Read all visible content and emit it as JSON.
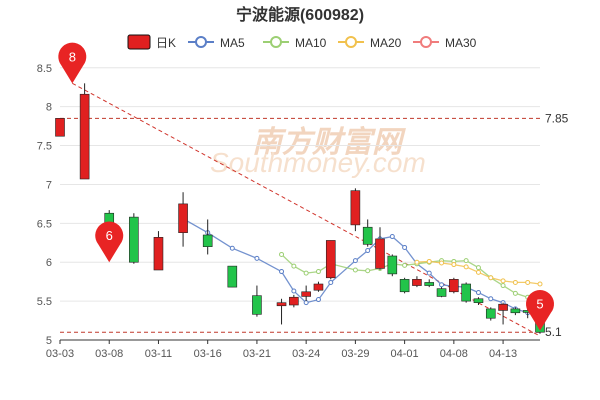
{
  "chart_data": {
    "type": "candlestick",
    "title": "宁波能源(600982)",
    "legend": [
      {
        "name": "日K",
        "color": "#e02020",
        "style": "box"
      },
      {
        "name": "MA5",
        "color": "#5b7fc7",
        "style": "circle"
      },
      {
        "name": "MA10",
        "color": "#9ccf73",
        "style": "circle"
      },
      {
        "name": "MA20",
        "color": "#f1c14d",
        "style": "circle"
      },
      {
        "name": "MA30",
        "color": "#f07c7c",
        "style": "circle"
      }
    ],
    "legend_position": "top-center",
    "ylim": [
      5,
      8.6
    ],
    "y_ticks": [
      5,
      5.5,
      6,
      6.5,
      7,
      7.5,
      8,
      8.5
    ],
    "x_ticks": [
      "03-03",
      "03-08",
      "03-11",
      "03-16",
      "03-21",
      "03-24",
      "03-29",
      "04-01",
      "04-08",
      "04-13"
    ],
    "x_tick_index": [
      0,
      4,
      8,
      12,
      16,
      20,
      24,
      28,
      32,
      36
    ],
    "num_days": 40,
    "grid": true,
    "up_color": "#e02020",
    "down_color": "#22c44a",
    "candles": [
      {
        "o": 7.62,
        "c": 7.85,
        "h": 7.85,
        "l": 7.62
      },
      {
        "o": 7.07,
        "c": 8.16,
        "h": 8.3,
        "l": 7.07
      },
      {
        "o": 6.63,
        "c": 6.5,
        "h": 6.67,
        "l": 6.4
      },
      {
        "o": 6.58,
        "c": 6.0,
        "h": 6.63,
        "l": 5.98
      },
      {
        "o": 5.9,
        "c": 6.32,
        "h": 6.4,
        "l": 5.9
      },
      {
        "o": 6.38,
        "c": 6.75,
        "h": 6.9,
        "l": 6.2
      },
      {
        "o": 6.35,
        "c": 6.2,
        "h": 6.55,
        "l": 6.1
      },
      {
        "o": 5.95,
        "c": 5.68,
        "h": 5.95,
        "l": 5.68
      },
      {
        "o": 5.57,
        "c": 5.33,
        "h": 5.7,
        "l": 5.3
      },
      {
        "o": 5.44,
        "c": 5.48,
        "h": 5.53,
        "l": 5.2
      },
      {
        "o": 5.45,
        "c": 5.55,
        "h": 5.58,
        "l": 5.42
      },
      {
        "o": 5.56,
        "c": 5.62,
        "h": 5.7,
        "l": 5.5
      },
      {
        "o": 5.64,
        "c": 5.72,
        "h": 5.75,
        "l": 5.62
      },
      {
        "o": 5.8,
        "c": 6.28,
        "h": 6.28,
        "l": 5.78
      },
      {
        "o": 6.48,
        "c": 6.92,
        "h": 6.95,
        "l": 6.4
      },
      {
        "o": 6.45,
        "c": 6.23,
        "h": 6.55,
        "l": 6.2
      },
      {
        "o": 5.92,
        "c": 6.3,
        "h": 6.45,
        "l": 5.9
      },
      {
        "o": 6.08,
        "c": 5.85,
        "h": 6.1,
        "l": 5.82
      },
      {
        "o": 5.78,
        "c": 5.62,
        "h": 5.8,
        "l": 5.6
      },
      {
        "o": 5.7,
        "c": 5.78,
        "h": 5.82,
        "l": 5.68
      },
      {
        "o": 5.74,
        "c": 5.7,
        "h": 5.78,
        "l": 5.68
      },
      {
        "o": 5.66,
        "c": 5.56,
        "h": 5.68,
        "l": 5.55
      },
      {
        "o": 5.62,
        "c": 5.78,
        "h": 5.8,
        "l": 5.6
      },
      {
        "o": 5.72,
        "c": 5.5,
        "h": 5.74,
        "l": 5.48
      },
      {
        "o": 5.53,
        "c": 5.48,
        "h": 5.55,
        "l": 5.45
      },
      {
        "o": 5.4,
        "c": 5.28,
        "h": 5.42,
        "l": 5.25
      },
      {
        "o": 5.38,
        "c": 5.46,
        "h": 5.48,
        "l": 5.2
      },
      {
        "o": 5.4,
        "c": 5.35,
        "h": 5.42,
        "l": 5.32
      },
      {
        "o": 5.38,
        "c": 5.37,
        "h": 5.4,
        "l": 5.28
      },
      {
        "o": 5.28,
        "c": 5.1,
        "h": 5.3,
        "l": 5.08
      }
    ],
    "candle_index": [
      0,
      2,
      4,
      6,
      8,
      10,
      12,
      14,
      16,
      18,
      19,
      20,
      21,
      22,
      24,
      25,
      26,
      27,
      28,
      29,
      30,
      31,
      32,
      33,
      34,
      35,
      36,
      37,
      38,
      39
    ],
    "series": [
      {
        "name": "MA5",
        "color": "#5b7fc7",
        "x": [
          10,
          12,
          14,
          16,
          18,
          19,
          20,
          21,
          22,
          24,
          25,
          26,
          27,
          28,
          29,
          30,
          31,
          32,
          33,
          34,
          35,
          36,
          37,
          38,
          39
        ],
        "y": [
          6.56,
          6.38,
          6.18,
          6.05,
          5.88,
          5.63,
          5.48,
          5.52,
          5.74,
          6.02,
          6.15,
          6.3,
          6.33,
          6.19,
          5.98,
          5.86,
          5.71,
          5.69,
          5.68,
          5.61,
          5.53,
          5.48,
          5.4,
          5.35,
          5.31
        ]
      },
      {
        "name": "MA10",
        "color": "#9ccf73",
        "x": [
          18,
          19,
          20,
          21,
          22,
          24,
          25,
          26,
          27,
          28,
          29,
          30,
          31,
          32,
          33,
          34,
          35,
          36,
          37,
          38,
          39
        ],
        "y": [
          6.1,
          5.95,
          5.86,
          5.88,
          5.98,
          5.9,
          5.89,
          5.92,
          5.98,
          5.96,
          5.98,
          6.0,
          6.02,
          6.01,
          6.02,
          5.93,
          5.8,
          5.7,
          5.6,
          5.55,
          5.5
        ]
      },
      {
        "name": "MA20",
        "color": "#f1c14d",
        "x": [
          29,
          30,
          31,
          32,
          33,
          34,
          35,
          36,
          37,
          38,
          39
        ],
        "y": [
          6.0,
          6.01,
          5.99,
          5.97,
          5.94,
          5.87,
          5.8,
          5.76,
          5.74,
          5.74,
          5.72
        ]
      }
    ],
    "reference_lines": [
      {
        "y": 7.85,
        "label": "7.85"
      },
      {
        "y": 5.1,
        "label": "5.1"
      }
    ],
    "trendline": {
      "from": {
        "x": 1,
        "y": 8.3
      },
      "to": {
        "x": 39,
        "y": 5.05
      }
    },
    "markers": [
      {
        "label": "8",
        "x": 1,
        "y": 8.3,
        "color": "#e82424"
      },
      {
        "label": "6",
        "x": 4,
        "y": 6.0,
        "color": "#e82424"
      },
      {
        "label": "5",
        "x": 39,
        "y": 5.12,
        "color": "#e82424"
      }
    ],
    "watermark": {
      "cn": "南方财富网",
      "en": "Southmoney.com"
    }
  }
}
